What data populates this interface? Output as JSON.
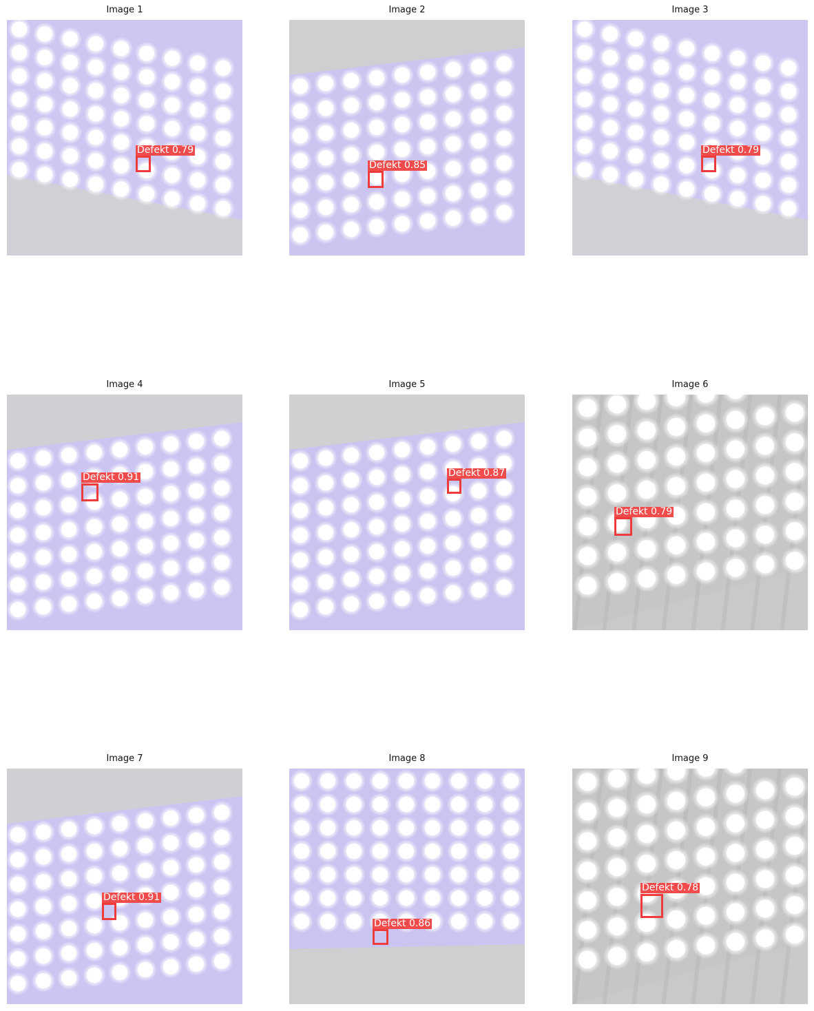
{
  "panels": [
    {
      "title": "Image 1",
      "detection": {
        "label": "Defekt 0.79"
      },
      "style": "blue-tilt-down",
      "colors": {
        "bg": "#cfd1d6",
        "board": "#cdc8f2"
      }
    },
    {
      "title": "Image 2",
      "detection": {
        "label": "Defekt 0.85"
      },
      "style": "blue-top-bg",
      "colors": {
        "bg": "#cdcfd0",
        "board": "#cbc6f0"
      }
    },
    {
      "title": "Image 3",
      "detection": {
        "label": "Defekt 0.79"
      },
      "style": "blue-tilt-down",
      "colors": {
        "bg": "#cfd1d6",
        "board": "#cdc8f2"
      }
    },
    {
      "title": "Image 4",
      "detection": {
        "label": "Defekt 0.91"
      },
      "style": "blue-top-bg",
      "colors": {
        "bg": "#cfd0d3",
        "board": "#cbc5f2"
      }
    },
    {
      "title": "Image 5",
      "detection": {
        "label": "Defekt 0.87"
      },
      "style": "blue-top-bg",
      "colors": {
        "bg": "#d0d0d2",
        "board": "#c9c4f0"
      }
    },
    {
      "title": "Image 6",
      "detection": {
        "label": "Defekt 0.79"
      },
      "style": "grey-grid",
      "colors": {
        "bg": "#c9c9cb",
        "board": "#c6c6c8"
      }
    },
    {
      "title": "Image 7",
      "detection": {
        "label": "Defekt 0.91"
      },
      "style": "blue-top-bg",
      "colors": {
        "bg": "#cfd0d3",
        "board": "#cbc5f2"
      }
    },
    {
      "title": "Image 8",
      "detection": {
        "label": "Defekt 0.86"
      },
      "style": "blue-bottom-bg",
      "colors": {
        "bg": "#cfcfd2",
        "board": "#c9c4f0"
      }
    },
    {
      "title": "Image 9",
      "detection": {
        "label": "Defekt 0.78"
      },
      "style": "grey-grid",
      "colors": {
        "bg": "#c9c9cb",
        "board": "#c6c6c8"
      }
    }
  ],
  "colors": {
    "detection": "#ee3b3b",
    "label_bg": "#f24b4b",
    "led": "#ffffff"
  }
}
